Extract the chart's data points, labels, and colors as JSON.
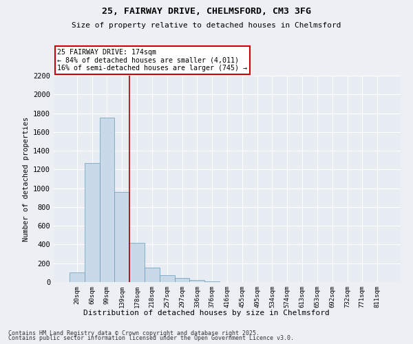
{
  "title1": "25, FAIRWAY DRIVE, CHELMSFORD, CM3 3FG",
  "title2": "Size of property relative to detached houses in Chelmsford",
  "xlabel": "Distribution of detached houses by size in Chelmsford",
  "ylabel": "Number of detached properties",
  "categories": [
    "20sqm",
    "60sqm",
    "99sqm",
    "139sqm",
    "178sqm",
    "218sqm",
    "257sqm",
    "297sqm",
    "336sqm",
    "376sqm",
    "416sqm",
    "455sqm",
    "495sqm",
    "534sqm",
    "574sqm",
    "613sqm",
    "653sqm",
    "692sqm",
    "732sqm",
    "771sqm",
    "811sqm"
  ],
  "values": [
    100,
    1270,
    1750,
    960,
    415,
    155,
    75,
    45,
    20,
    10,
    0,
    0,
    0,
    0,
    0,
    0,
    0,
    0,
    0,
    0,
    0
  ],
  "bar_color": "#c9d9e8",
  "bar_edge_color": "#6699bb",
  "vline_x": 3.5,
  "vline_color": "#aa0000",
  "annotation_text": "25 FAIRWAY DRIVE: 174sqm\n← 84% of detached houses are smaller (4,011)\n16% of semi-detached houses are larger (745) →",
  "annotation_box_color": "#cc0000",
  "ylim": [
    0,
    2200
  ],
  "yticks": [
    0,
    200,
    400,
    600,
    800,
    1000,
    1200,
    1400,
    1600,
    1800,
    2000,
    2200
  ],
  "background_color": "#ecf0f5",
  "plot_bg_color": "#e8edf3",
  "grid_color": "#ffffff",
  "footer1": "Contains HM Land Registry data © Crown copyright and database right 2025.",
  "footer2": "Contains public sector information licensed under the Open Government Licence v3.0."
}
